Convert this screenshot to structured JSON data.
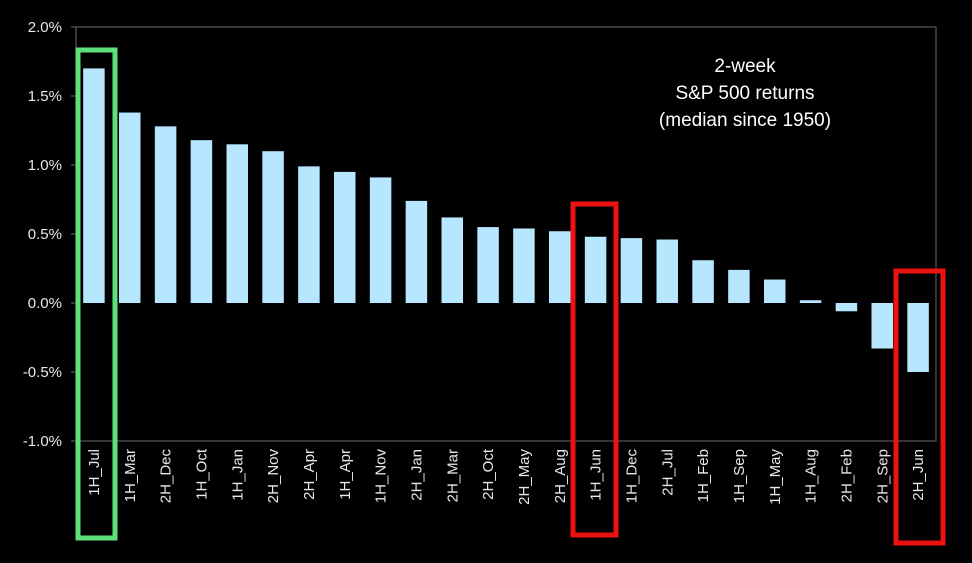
{
  "chart_data": {
    "type": "bar",
    "title": [
      "2-week",
      "S&P 500 returns",
      "(median since 1950)"
    ],
    "categories": [
      "1H_Jul",
      "1H_Mar",
      "2H_Dec",
      "1H_Oct",
      "1H_Jan",
      "2H_Nov",
      "2H_Apr",
      "1H_Apr",
      "1H_Nov",
      "2H_Jan",
      "2H_Mar",
      "2H_Oct",
      "2H_May",
      "2H_Aug",
      "1H_Jun",
      "1H_Dec",
      "2H_Jul",
      "1H_Feb",
      "1H_Sep",
      "1H_May",
      "1H_Aug",
      "2H_Feb",
      "2H_Sep",
      "2H_Jun"
    ],
    "values": [
      1.7,
      1.38,
      1.28,
      1.18,
      1.15,
      1.1,
      0.99,
      0.95,
      0.91,
      0.74,
      0.62,
      0.55,
      0.54,
      0.52,
      0.48,
      0.47,
      0.46,
      0.31,
      0.24,
      0.17,
      0.02,
      -0.06,
      -0.33,
      -0.5
    ],
    "color": "#b7e6ff",
    "ylim": [
      -1.0,
      2.0
    ],
    "yticks": [
      {
        "value": -1.0,
        "label": "-1.0%"
      },
      {
        "value": -0.5,
        "label": "-0.5%"
      },
      {
        "value": 0.0,
        "label": "0.0%"
      },
      {
        "value": 0.5,
        "label": "0.5%"
      },
      {
        "value": 1.0,
        "label": "1.0%"
      },
      {
        "value": 1.5,
        "label": "1.5%"
      },
      {
        "value": 2.0,
        "label": "2.0%"
      }
    ]
  }
}
